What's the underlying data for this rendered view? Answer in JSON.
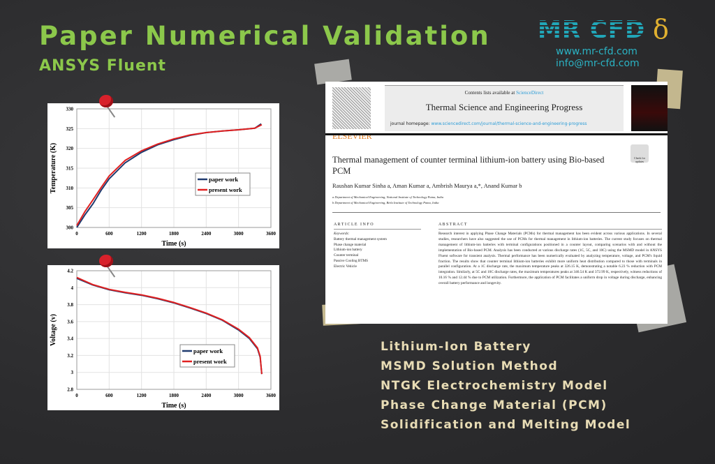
{
  "header": {
    "title": "Paper Numerical Validation",
    "subtitle": "ANSYS Fluent"
  },
  "brand": {
    "logo": "MR CFD",
    "website": "www.mr-cfd.com",
    "email": "info@mr-cfd.com"
  },
  "colors": {
    "title": "#8cc84b",
    "brand": "#21a6b8",
    "features": "#e8dcb5",
    "paper_work": "#1f3a6e",
    "present_work": "#e02020"
  },
  "paper": {
    "contents_line": "Contents lists available at",
    "contents_link": "ScienceDirect",
    "journal": "Thermal Science and Engineering Progress",
    "homepage_label": "journal homepage:",
    "homepage_url": "www.sciencedirect.com/journal/thermal-science-and-engineering-progress",
    "publisher": "ELSEVIER",
    "check_updates": "Check for updates",
    "article_title": "Thermal management of counter terminal lithium-ion battery using Bio-based PCM",
    "authors": "Raushan Kumar Sinha a, Aman Kumar a, Ambrish Maurya a,*, Anand Kumar b",
    "affiliations": [
      "a Department of Mechanical Engineering, National Institute of Technology Patna, India",
      "b Department of Mechanical Engineering, Birla Institute of Technology Patna, India"
    ],
    "article_info_heading": "A R T I C L E   I N F O",
    "keywords_label": "Keywords:",
    "keywords": [
      "Battery thermal management system",
      "Phase change material",
      "Lithium-ion battery",
      "Counter terminal",
      "Passive Cooling BTMS",
      "Electric Vehicle"
    ],
    "abstract_heading": "A B S T R A C T",
    "abstract": "Research interest in applying Phase Change Materials (PCMs) for thermal management has been evident across various applications. In several studies, researchers have also suggested the use of PCMs for thermal management in lithium-ion batteries. The current study focuses on thermal management of lithium-ion batteries with terminal configurations positioned in a counter layout, comparing scenarios with and without the implementation of Bio-based PCM. Analysis has been conducted at various discharge rates (1C, 5C, and 10C) using the MSMD model in ANSYS Fluent software for transient analysis. Thermal performance has been numerically evaluated by analyzing temperature, voltage, and PCM's liquid fraction. The results show that counter terminal lithium-ion batteries exhibit more uniform heat distribution compared to those with terminals in parallel configuration. At a 1C discharge rate, the maximum temperature peaks at 326.15 K, demonstrating a notable 6.23 % reduction with PCM integration. Similarly, at 5C and 10C discharge rates, the maximum temperatures peaks at 346.54 K and 372.99 K, respectively, witness reductions of 10.16 % and 12.44 % due to PCM utilization. Furthermore, the application of PCM facilitates a uniform drop in voltage during discharge, enhancing overall battery performance and longevity."
  },
  "features": [
    "Lithium-Ion Battery",
    "MSMD Solution Method",
    "NTGK Electrochemistry Model",
    "Phase Change Material (PCM)",
    "Solidification and Melting Model"
  ],
  "chart_data": [
    {
      "type": "line",
      "xlabel": "Time (s)",
      "ylabel": "Temperature (K)",
      "xlim": [
        0,
        3600
      ],
      "ylim": [
        300,
        330
      ],
      "xticks": [
        0,
        600,
        1200,
        1800,
        2400,
        3000,
        3600
      ],
      "yticks": [
        300,
        305,
        310,
        315,
        320,
        325,
        330
      ],
      "grid": true,
      "legend": "center-right",
      "series": [
        {
          "name": "paper work",
          "color": "#1f3a6e",
          "x": [
            0,
            150,
            300,
            450,
            600,
            900,
            1200,
            1500,
            1800,
            2100,
            2400,
            2700,
            3000,
            3300,
            3420
          ],
          "y": [
            300,
            303.2,
            306,
            309.4,
            312.3,
            316.4,
            319,
            320.9,
            322.2,
            323.3,
            324,
            324.4,
            324.7,
            325.1,
            326.2
          ]
        },
        {
          "name": "present work",
          "color": "#e02020",
          "x": [
            0,
            150,
            300,
            450,
            600,
            900,
            1200,
            1500,
            1800,
            2100,
            2400,
            2700,
            3000,
            3300,
            3430
          ],
          "y": [
            300.5,
            304,
            307,
            310.1,
            313,
            317,
            319.4,
            321.1,
            322.4,
            323.4,
            324,
            324.4,
            324.7,
            325.1,
            326
          ]
        }
      ]
    },
    {
      "type": "line",
      "xlabel": "Time (s)",
      "ylabel": "Voltage (v)",
      "xlim": [
        0,
        3600
      ],
      "ylim": [
        2.8,
        4.2
      ],
      "xticks": [
        0,
        600,
        1200,
        1800,
        2400,
        3000,
        3600
      ],
      "yticks": [
        2.8,
        3,
        3.2,
        3.4,
        3.6,
        3.8,
        4,
        4.2
      ],
      "grid": true,
      "legend": "bottom-center",
      "series": [
        {
          "name": "paper work",
          "color": "#1f3a6e",
          "x": [
            0,
            300,
            600,
            900,
            1200,
            1500,
            1800,
            2100,
            2400,
            2700,
            3000,
            3200,
            3350,
            3400,
            3430
          ],
          "y": [
            4.11,
            4.03,
            3.975,
            3.94,
            3.91,
            3.87,
            3.82,
            3.76,
            3.695,
            3.615,
            3.5,
            3.4,
            3.28,
            3.18,
            2.98
          ]
        },
        {
          "name": "present work",
          "color": "#e02020",
          "x": [
            0,
            300,
            600,
            900,
            1200,
            1500,
            1800,
            2100,
            2400,
            2700,
            3000,
            3200,
            3350,
            3400,
            3430
          ],
          "y": [
            4.12,
            4.035,
            3.98,
            3.945,
            3.915,
            3.875,
            3.825,
            3.765,
            3.7,
            3.62,
            3.51,
            3.41,
            3.29,
            3.19,
            2.98
          ]
        }
      ]
    }
  ]
}
